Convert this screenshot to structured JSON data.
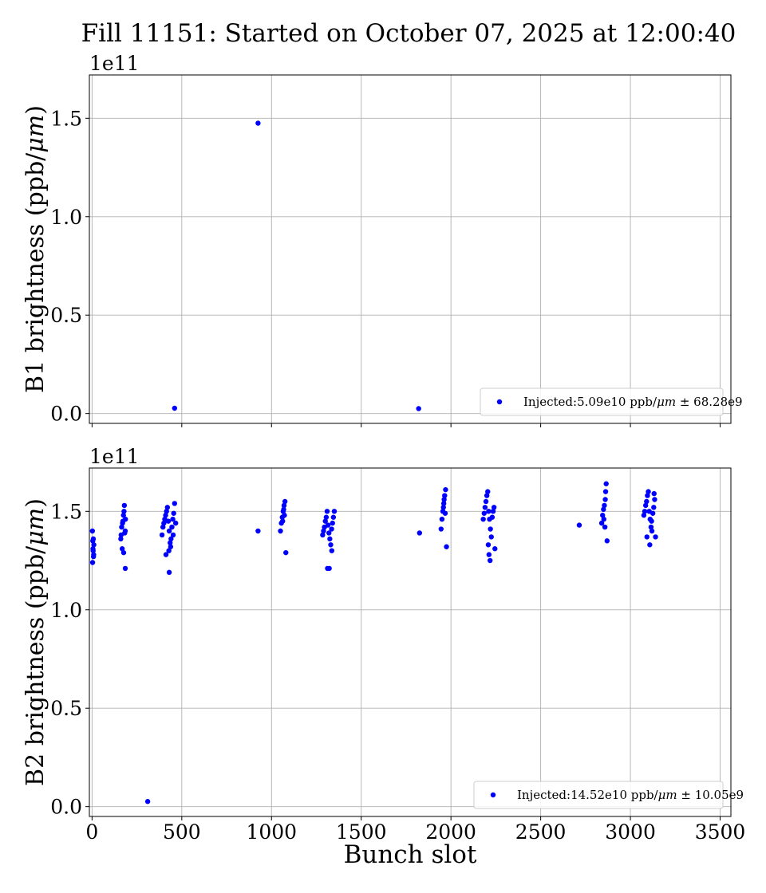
{
  "title": "Fill 11151: Started on October 07, 2025 at 12:00:40",
  "xlabel": "Bunch slot",
  "colors": {
    "points": "#0000ff",
    "grid": "#b0b0b0",
    "axes": "#000000"
  },
  "chart_data": [
    {
      "type": "scatter",
      "ylabel": "B1 brightness (ppb/μm)",
      "offset_text": "1e11",
      "xlim": [
        -15,
        3560
      ],
      "ylim": [
        -0.05,
        1.72
      ],
      "grid": true,
      "legend_position": "bottom-right",
      "legend": "Injected:5.09e10 ppb/μm ± 68.28e9",
      "x_ticks": [
        "0",
        "500",
        "1000",
        "1500",
        "2000",
        "2500",
        "3000",
        "3500"
      ],
      "y_ticks": [
        "0.0",
        "0.5",
        "1.0",
        "1.5"
      ],
      "x": [
        460,
        925,
        1820
      ],
      "y": [
        0.027,
        1.475,
        0.025
      ]
    },
    {
      "type": "scatter",
      "ylabel": "B2 brightness (ppb/μm)",
      "offset_text": "1e11",
      "xlim": [
        -15,
        3560
      ],
      "ylim": [
        -0.05,
        1.72
      ],
      "grid": true,
      "legend_position": "bottom-right",
      "legend": "Injected:14.52e10 ppb/μm ± 10.05e9",
      "x_ticks": [
        "0",
        "500",
        "1000",
        "1500",
        "2000",
        "2500",
        "3000",
        "3500"
      ],
      "y_ticks": [
        "0.0",
        "0.5",
        "1.0",
        "1.5"
      ],
      "x": [
        2,
        4,
        6,
        8,
        10,
        3,
        5,
        7,
        9,
        160,
        165,
        170,
        175,
        180,
        185,
        168,
        172,
        178,
        182,
        176,
        162,
        186,
        390,
        395,
        400,
        405,
        410,
        415,
        420,
        425,
        430,
        435,
        440,
        445,
        450,
        455,
        460,
        412,
        428,
        438,
        452,
        466,
        1050,
        1055,
        1060,
        1065,
        1070,
        1075,
        1062,
        1068,
        1072,
        1285,
        1290,
        1295,
        1300,
        1305,
        1310,
        1315,
        1320,
        1325,
        1330,
        1335,
        1340,
        1345,
        1350,
        1312,
        1322,
        1336,
        1945,
        1950,
        1955,
        1960,
        1965,
        1970,
        1958,
        1962,
        1968,
        2180,
        2185,
        2190,
        2195,
        2200,
        2205,
        2210,
        2215,
        2220,
        2225,
        2230,
        2235,
        2240,
        2208,
        2212,
        2218,
        2840,
        2845,
        2850,
        2855,
        2860,
        2865,
        2852,
        2858,
        2862,
        3075,
        3080,
        3085,
        3090,
        3095,
        3100,
        3105,
        3110,
        3115,
        3120,
        3125,
        3130,
        3135,
        3092,
        3108,
        3118,
        3132,
        925,
        1825,
        2715,
        310,
        1080,
        1975,
        2245,
        2870,
        3140,
        185,
        430
      ],
      "y": [
        1.4,
        1.35,
        1.3,
        1.27,
        1.33,
        1.24,
        1.31,
        1.36,
        1.28,
        1.36,
        1.42,
        1.44,
        1.48,
        1.53,
        1.4,
        1.31,
        1.45,
        1.5,
        1.39,
        1.29,
        1.38,
        1.46,
        1.38,
        1.42,
        1.44,
        1.46,
        1.48,
        1.5,
        1.52,
        1.45,
        1.4,
        1.34,
        1.36,
        1.42,
        1.46,
        1.49,
        1.54,
        1.28,
        1.3,
        1.32,
        1.38,
        1.44,
        1.4,
        1.44,
        1.47,
        1.5,
        1.53,
        1.55,
        1.45,
        1.51,
        1.48,
        1.38,
        1.4,
        1.42,
        1.45,
        1.47,
        1.5,
        1.43,
        1.39,
        1.36,
        1.33,
        1.41,
        1.44,
        1.47,
        1.5,
        1.21,
        1.21,
        1.3,
        1.41,
        1.46,
        1.5,
        1.54,
        1.58,
        1.61,
        1.52,
        1.56,
        1.49,
        1.46,
        1.49,
        1.52,
        1.55,
        1.58,
        1.6,
        1.5,
        1.46,
        1.41,
        1.37,
        1.47,
        1.5,
        1.52,
        1.33,
        1.28,
        1.25,
        1.44,
        1.48,
        1.51,
        1.53,
        1.56,
        1.64,
        1.46,
        1.42,
        1.6,
        1.48,
        1.5,
        1.53,
        1.55,
        1.58,
        1.6,
        1.5,
        1.46,
        1.42,
        1.4,
        1.49,
        1.52,
        1.56,
        1.37,
        1.33,
        1.45,
        1.59,
        1.4,
        1.39,
        1.43,
        0.026,
        1.29,
        1.32,
        1.31,
        1.35,
        1.37,
        1.21,
        1.19
      ]
    }
  ]
}
